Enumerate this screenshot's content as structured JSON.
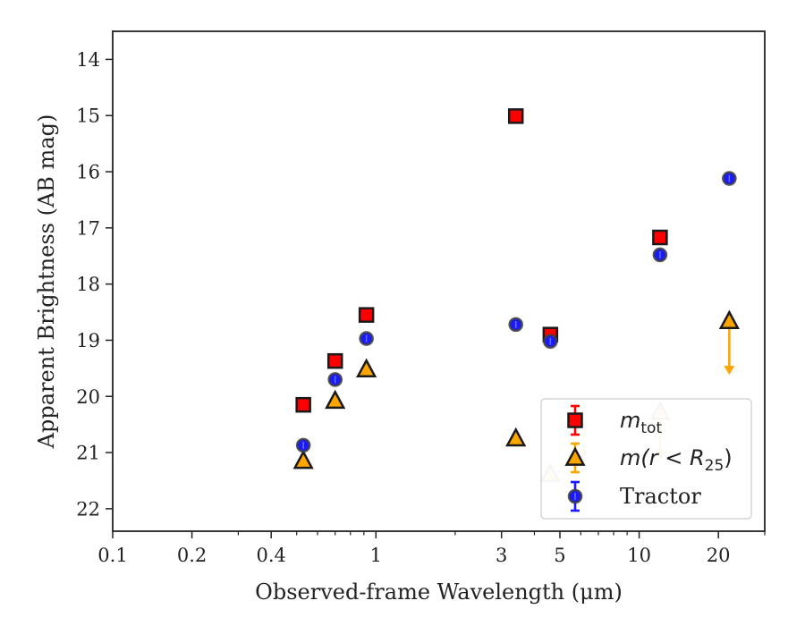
{
  "chart_data": {
    "type": "scatter",
    "title": "",
    "xlabel": "Observed-frame Wavelength (μm)",
    "ylabel": "Apparent Brightness (AB mag)",
    "xscale": "log",
    "xlim": [
      0.1,
      30
    ],
    "ylim": [
      22.4,
      13.5
    ],
    "y_inverted": true,
    "x_ticks": [
      0.1,
      0.2,
      0.4,
      1,
      3,
      5,
      10,
      20
    ],
    "x_tick_labels": [
      "0.1",
      "0.2",
      "0.4",
      "1",
      "3",
      "5",
      "10",
      "20"
    ],
    "y_ticks": [
      14,
      15,
      16,
      17,
      18,
      19,
      20,
      21,
      22
    ],
    "y_tick_labels": [
      "14",
      "15",
      "16",
      "17",
      "18",
      "19",
      "20",
      "21",
      "22"
    ],
    "grid": false,
    "legend_position": "lower-right",
    "series": [
      {
        "key": "mtot",
        "legend_base": "m",
        "legend_sub": "tot",
        "marker": "square",
        "color": "#ff0000",
        "edge_color": "#1a1a1a",
        "points": [
          {
            "x": 0.53,
            "y": 20.15
          },
          {
            "x": 0.7,
            "y": 19.37
          },
          {
            "x": 0.92,
            "y": 18.55
          },
          {
            "x": 3.4,
            "y": 15.01
          },
          {
            "x": 4.6,
            "y": 18.9
          },
          {
            "x": 12.0,
            "y": 17.17
          }
        ]
      },
      {
        "key": "mR25",
        "legend_base": "m(r < R",
        "legend_sub": "25",
        "legend_close": ")",
        "marker": "triangle",
        "color": "#ffa500",
        "edge_color": "#1a1a1a",
        "points": [
          {
            "x": 0.53,
            "y": 21.15
          },
          {
            "x": 0.7,
            "y": 20.08
          },
          {
            "x": 0.92,
            "y": 19.52
          },
          {
            "x": 3.4,
            "y": 20.75
          },
          {
            "x": 4.6,
            "y": 21.38,
            "faded": true
          },
          {
            "x": 12.0,
            "y": 20.28,
            "faded": true,
            "limit_to": 21.1
          },
          {
            "x": 22.0,
            "y": 18.66,
            "limit_to": 19.6
          }
        ]
      },
      {
        "key": "tractor",
        "legend_base": "Tractor",
        "marker": "circle",
        "color": "#1a1aff",
        "edge_color": "#404040",
        "points": [
          {
            "x": 0.53,
            "y": 20.87
          },
          {
            "x": 0.7,
            "y": 19.7
          },
          {
            "x": 0.92,
            "y": 18.97
          },
          {
            "x": 3.4,
            "y": 18.72
          },
          {
            "x": 4.6,
            "y": 19.02
          },
          {
            "x": 12.0,
            "y": 17.48
          },
          {
            "x": 22.0,
            "y": 16.12
          }
        ]
      }
    ]
  }
}
